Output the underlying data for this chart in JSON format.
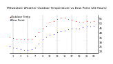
{
  "title": "Milwaukee Weather Outdoor Temperature vs Dew Point (24 Hours)",
  "title_fontsize": 3.2,
  "background_color": "#ffffff",
  "plot_bg": "#ffffff",
  "grid_color": "#888888",
  "hours": [
    0,
    1,
    2,
    3,
    4,
    5,
    6,
    7,
    8,
    9,
    10,
    11,
    12,
    13,
    14,
    15,
    16,
    17,
    18,
    19,
    20,
    21,
    22,
    23
  ],
  "temp": [
    35,
    34,
    33,
    33,
    32,
    32,
    33,
    36,
    40,
    44,
    47,
    50,
    52,
    54,
    55,
    55,
    54,
    53,
    52,
    51,
    51,
    52,
    51,
    52
  ],
  "dew": [
    25,
    24,
    23,
    22,
    21,
    21,
    22,
    24,
    28,
    32,
    35,
    37,
    38,
    40,
    41,
    42,
    43,
    44,
    44,
    44,
    45,
    46,
    46,
    47
  ],
  "temp_color": "#cc0000",
  "dew_color": "#0000cc",
  "marker_size": 1.5,
  "ylim": [
    18,
    58
  ],
  "yticks": [
    20,
    25,
    30,
    35,
    40,
    45,
    50,
    55
  ],
  "ytick_fontsize": 2.8,
  "xtick_fontsize": 2.5,
  "xticks": [
    1,
    3,
    5,
    7,
    9,
    11,
    13,
    15,
    17,
    19,
    21,
    23
  ],
  "vgrid_hours": [
    1,
    5,
    9,
    13,
    17,
    21
  ],
  "legend_fontsize": 2.8,
  "legend_labels": [
    "Outdoor Temp",
    "Dew Point"
  ]
}
